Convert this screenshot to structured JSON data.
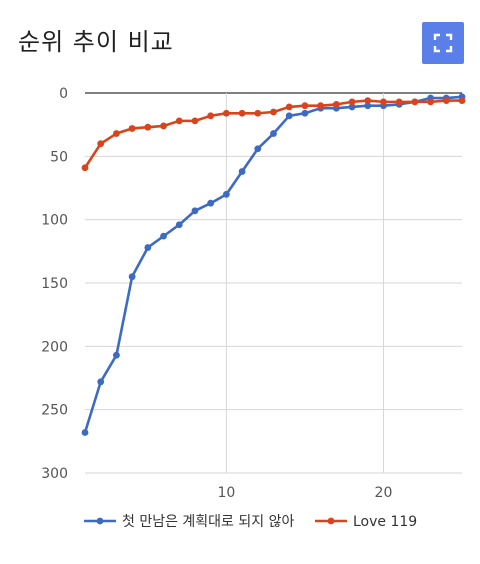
{
  "title": "순위 추이 비교",
  "expand_button": {
    "icon": "fullscreen-icon",
    "color": "#5b7fe8"
  },
  "chart_data": {
    "type": "line",
    "title": "순위 추이 비교",
    "xlabel": "",
    "ylabel": "",
    "xlim": [
      1,
      25
    ],
    "ylim": [
      0,
      300
    ],
    "y_inverted": true,
    "x_ticks": [
      10,
      20
    ],
    "y_ticks": [
      0,
      50,
      100,
      150,
      200,
      250,
      300
    ],
    "grid": true,
    "legend_position": "bottom",
    "series": [
      {
        "name": "첫 만남은 계획대로 되지 않아",
        "color": "#3d6bc4",
        "x": [
          1,
          2,
          3,
          4,
          5,
          6,
          7,
          8,
          9,
          10,
          11,
          12,
          13,
          14,
          15,
          16,
          17,
          18,
          19,
          20,
          21,
          22,
          23,
          24,
          25
        ],
        "values": [
          268,
          228,
          207,
          145,
          122,
          113,
          104,
          93,
          87,
          80,
          62,
          44,
          32,
          18,
          16,
          12,
          12,
          11,
          10,
          10,
          9,
          7,
          4,
          4,
          3
        ]
      },
      {
        "name": "Love 119",
        "color": "#d9441c",
        "x": [
          1,
          2,
          3,
          4,
          5,
          6,
          7,
          8,
          9,
          10,
          11,
          12,
          13,
          14,
          15,
          16,
          17,
          18,
          19,
          20,
          21,
          22,
          23,
          24,
          25
        ],
        "values": [
          59,
          40,
          32,
          28,
          27,
          26,
          22,
          22,
          18,
          16,
          16,
          16,
          15,
          11,
          10,
          10,
          9,
          7,
          6,
          7,
          7,
          7,
          7,
          6,
          6
        ]
      }
    ]
  }
}
